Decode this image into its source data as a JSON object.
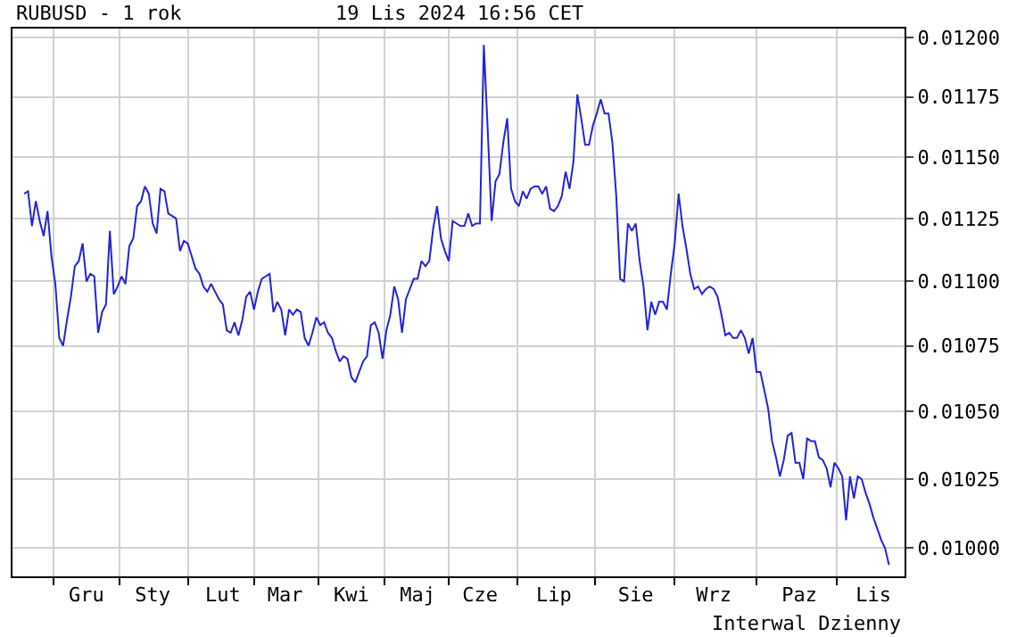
{
  "chart_data": {
    "type": "line",
    "title": "RUBUSD - 1 rok",
    "subtitle": "19 Lis 2024 16:56 CET",
    "annotations": [
      "Interwal Dzienny"
    ],
    "categories": [
      null,
      null,
      null,
      null,
      null,
      null,
      null,
      null,
      null,
      null,
      null,
      null,
      null,
      null,
      null,
      null,
      "Gru",
      null,
      null,
      null,
      null,
      null,
      null,
      null,
      null,
      null,
      null,
      null,
      null,
      null,
      null,
      null,
      null,
      "Sty",
      null,
      null,
      null,
      null,
      null,
      null,
      null,
      null,
      null,
      null,
      null,
      null,
      null,
      null,
      null,
      null,
      null,
      "Lut",
      null,
      null,
      null,
      null,
      null,
      null,
      null,
      null,
      null,
      null,
      null,
      null,
      null,
      null,
      null,
      "Mar",
      null,
      null,
      null,
      null,
      null,
      null,
      null,
      null,
      null,
      null,
      null,
      null,
      null,
      null,
      null,
      null,
      "Kwi",
      null,
      null,
      null,
      null,
      null,
      null,
      null,
      null,
      null,
      null,
      null,
      null,
      null,
      null,
      null,
      null,
      "Maj",
      null,
      null,
      null,
      null,
      null,
      null,
      null,
      null,
      null,
      null,
      null,
      null,
      null,
      null,
      null,
      "Cze",
      null,
      null,
      null,
      null,
      null,
      null,
      null,
      null,
      null,
      null,
      null,
      null,
      null,
      null,
      null,
      null,
      null,
      null,
      "Lip",
      null,
      null,
      null,
      null,
      null,
      null,
      null,
      null,
      null,
      null,
      null,
      null,
      null,
      null,
      null,
      null,
      null,
      null,
      null,
      null,
      "Sie",
      null,
      null,
      null,
      null,
      null,
      null,
      null,
      null,
      null,
      null,
      null,
      null,
      null,
      null,
      null,
      null,
      null,
      null,
      null,
      "Wrz",
      null,
      null,
      null,
      null,
      null,
      null,
      null,
      null,
      null,
      null,
      null,
      null,
      null,
      null,
      null,
      null,
      null,
      null,
      null,
      null,
      null,
      "Paz",
      null,
      null,
      null,
      null,
      null,
      null,
      null,
      null,
      null,
      null,
      null,
      null,
      null,
      null,
      null,
      null,
      null,
      null,
      "Lis",
      null,
      null,
      null,
      null
    ],
    "series": [
      {
        "color": "#2323d8",
        "values": [
          0.01135,
          0.01136,
          0.01122,
          0.01132,
          0.01124,
          0.01118,
          0.01128,
          0.0111,
          0.01099,
          0.01078,
          0.01075,
          0.01085,
          0.01094,
          0.01106,
          0.01108,
          0.01115,
          0.011,
          0.01103,
          0.01102,
          0.0108,
          0.01088,
          0.01091,
          0.0112,
          0.01095,
          0.01098,
          0.01102,
          0.01099,
          0.01114,
          0.01117,
          0.0113,
          0.01132,
          0.01138,
          0.01135,
          0.01123,
          0.01119,
          0.01137,
          0.01136,
          0.01127,
          0.01126,
          0.01125,
          0.01112,
          0.01116,
          0.01115,
          0.0111,
          0.01105,
          0.01103,
          0.01098,
          0.01096,
          0.01099,
          0.01096,
          0.01093,
          0.01091,
          0.01081,
          0.0108,
          0.01084,
          0.01079,
          0.01085,
          0.01094,
          0.01096,
          0.01089,
          0.01096,
          0.01101,
          0.01102,
          0.01103,
          0.01088,
          0.01092,
          0.01089,
          0.01079,
          0.01089,
          0.01087,
          0.01089,
          0.01088,
          0.01078,
          0.01075,
          0.0108,
          0.01086,
          0.01083,
          0.01084,
          0.0108,
          0.01078,
          0.01073,
          0.01069,
          0.01071,
          0.0107,
          0.01063,
          0.01061,
          0.01065,
          0.01069,
          0.01071,
          0.01083,
          0.01084,
          0.0108,
          0.0107,
          0.01081,
          0.01087,
          0.01098,
          0.01093,
          0.0108,
          0.01093,
          0.01097,
          0.01101,
          0.01101,
          0.01108,
          0.01106,
          0.01108,
          0.01121,
          0.0113,
          0.01117,
          0.01112,
          0.01108,
          0.01124,
          0.01123,
          0.01122,
          0.01122,
          0.01127,
          0.01122,
          0.01123,
          0.01123,
          0.01197,
          0.01161,
          0.01124,
          0.0114,
          0.01143,
          0.01156,
          0.01166,
          0.01137,
          0.01132,
          0.0113,
          0.01136,
          0.01133,
          0.01137,
          0.01138,
          0.01138,
          0.01135,
          0.01138,
          0.01129,
          0.01128,
          0.0113,
          0.01134,
          0.01144,
          0.01137,
          0.01148,
          0.01176,
          0.01166,
          0.01155,
          0.01155,
          0.01163,
          0.01168,
          0.01174,
          0.01168,
          0.01168,
          0.01156,
          0.01134,
          0.01101,
          0.011,
          0.01123,
          0.0112,
          0.01123,
          0.01108,
          0.01098,
          0.01081,
          0.01092,
          0.01087,
          0.01092,
          0.01092,
          0.01089,
          0.01103,
          0.01115,
          0.01135,
          0.01122,
          0.01113,
          0.01103,
          0.01097,
          0.01098,
          0.01095,
          0.01097,
          0.01098,
          0.01097,
          0.01094,
          0.01087,
          0.01079,
          0.0108,
          0.01078,
          0.01078,
          0.01081,
          0.01078,
          0.01072,
          0.01078,
          0.01065,
          0.01065,
          0.01058,
          0.01051,
          0.01039,
          0.01033,
          0.01026,
          0.01032,
          0.01041,
          0.01042,
          0.01031,
          0.01031,
          0.01025,
          0.0104,
          0.01039,
          0.01039,
          0.01033,
          0.01032,
          0.01029,
          0.01022,
          0.01031,
          0.01029,
          0.01026,
          0.0101,
          0.01026,
          0.01018,
          0.01026,
          0.01025,
          0.0102,
          0.01016,
          0.01011,
          0.01007,
          0.01003,
          0.01,
          0.00994
        ]
      }
    ],
    "ylim": [
      0.0099,
      0.01204
    ],
    "yticks": [
      {
        "value": 0.01,
        "label": "0.01000"
      },
      {
        "value": 0.01025,
        "label": "0.01025"
      },
      {
        "value": 0.0105,
        "label": "0.01050"
      },
      {
        "value": 0.01075,
        "label": "0.01075"
      },
      {
        "value": 0.011,
        "label": "0.01100"
      },
      {
        "value": 0.01125,
        "label": "0.01125"
      },
      {
        "value": 0.0115,
        "label": "0.01150"
      },
      {
        "value": 0.01175,
        "label": "0.01175"
      },
      {
        "value": 0.012,
        "label": "0.01200"
      }
    ],
    "log": "y",
    "grid": true,
    "marker": "none",
    "line_style": "solid"
  }
}
